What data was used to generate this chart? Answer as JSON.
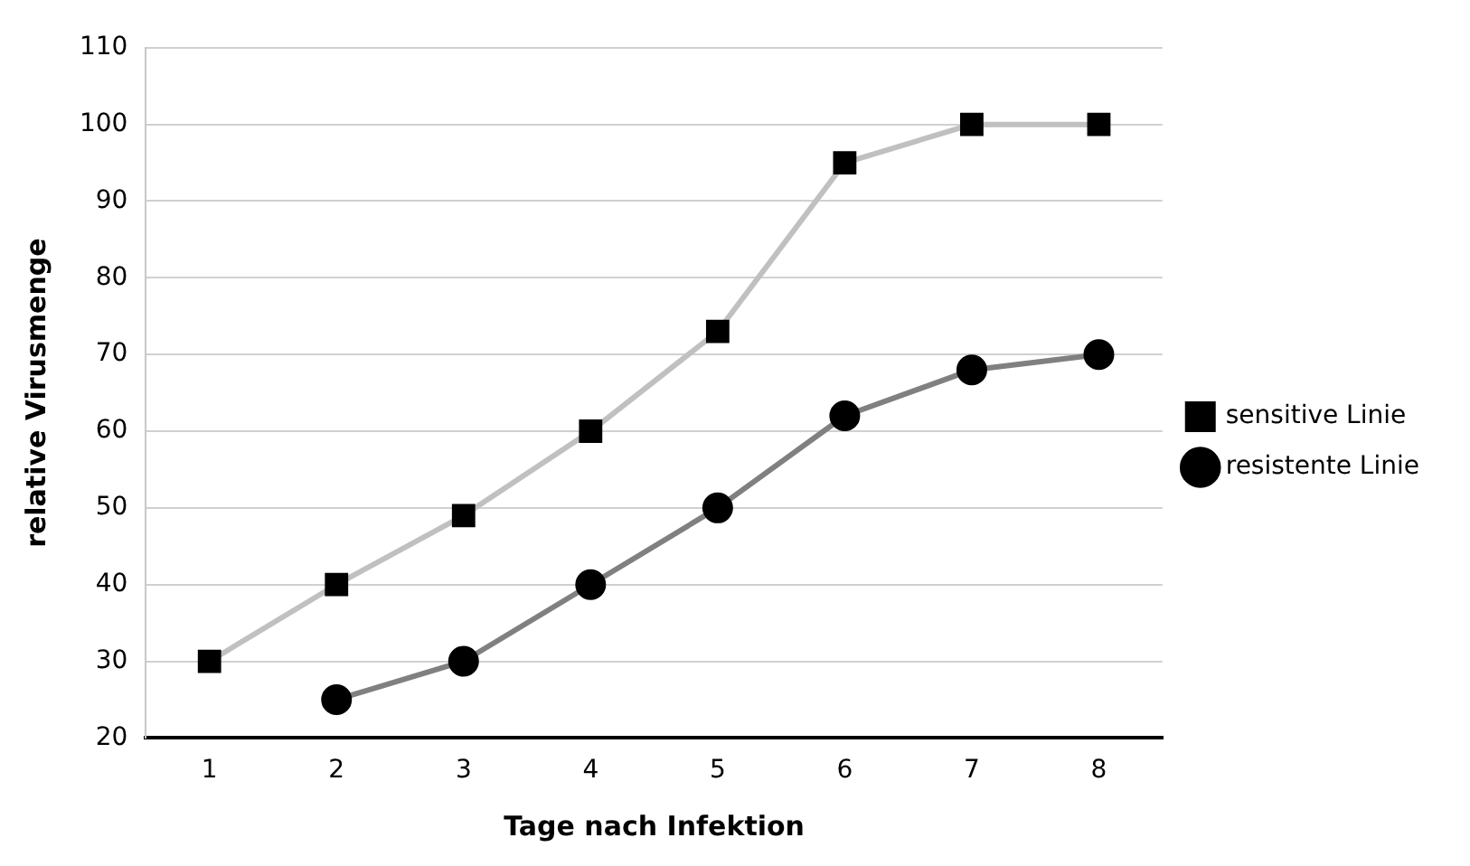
{
  "chart_data": {
    "type": "line",
    "xlabel": "Tage nach Infektion",
    "ylabel": "relative Virusmenge",
    "categories": [
      "1",
      "2",
      "3",
      "4",
      "5",
      "6",
      "7",
      "8"
    ],
    "series": [
      {
        "name": "sensitive Linie",
        "color": "#c0c0c0",
        "marker": "square",
        "values": [
          30,
          40,
          49,
          60,
          73,
          95,
          100,
          100
        ]
      },
      {
        "name": "resistente Linie",
        "color": "#808080",
        "marker": "circle",
        "values": [
          null,
          25,
          30,
          40,
          50,
          62,
          68,
          70
        ]
      }
    ],
    "ylim": [
      20,
      110
    ],
    "yticks": [
      20,
      30,
      40,
      50,
      60,
      70,
      80,
      90,
      100,
      110
    ],
    "grid": "y",
    "legend": "right"
  }
}
